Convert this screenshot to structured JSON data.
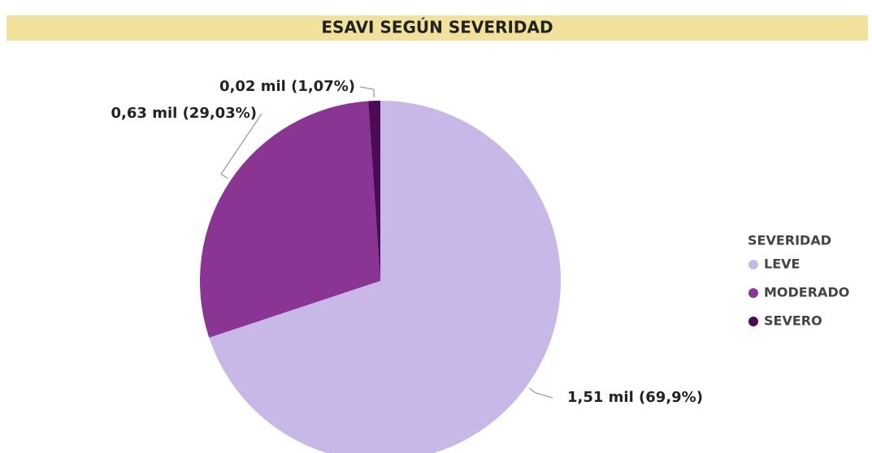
{
  "chart_data": {
    "type": "pie",
    "title": "ESAVI SEGÚN SEVERIDAD",
    "categories": [
      "LEVE",
      "MODERADO",
      "SEVERO"
    ],
    "values": [
      69.9,
      29.03,
      1.07
    ],
    "value_labels": [
      "1,51 mil (69,9%)",
      "0,63 mil (29,03%)",
      "0,02 mil (1,07%)"
    ],
    "colors": [
      "#c8b8e8",
      "#8a3493",
      "#4d0a57"
    ],
    "legend_title": "SEVERIDAD",
    "legend": "right"
  }
}
